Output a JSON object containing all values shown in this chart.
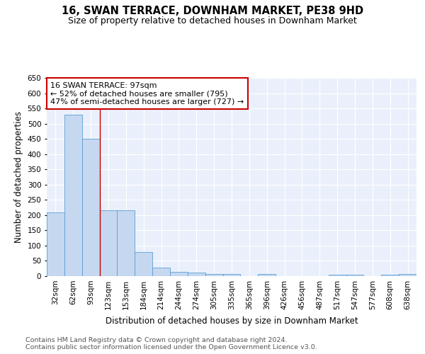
{
  "title": "16, SWAN TERRACE, DOWNHAM MARKET, PE38 9HD",
  "subtitle": "Size of property relative to detached houses in Downham Market",
  "xlabel": "Distribution of detached houses by size in Downham Market",
  "ylabel": "Number of detached properties",
  "footnote1": "Contains HM Land Registry data © Crown copyright and database right 2024.",
  "footnote2": "Contains public sector information licensed under the Open Government Licence v3.0.",
  "categories": [
    "32sqm",
    "62sqm",
    "93sqm",
    "123sqm",
    "153sqm",
    "184sqm",
    "214sqm",
    "244sqm",
    "274sqm",
    "305sqm",
    "335sqm",
    "365sqm",
    "396sqm",
    "426sqm",
    "456sqm",
    "487sqm",
    "517sqm",
    "547sqm",
    "577sqm",
    "608sqm",
    "638sqm"
  ],
  "values": [
    210,
    530,
    450,
    215,
    215,
    78,
    27,
    15,
    11,
    7,
    7,
    0,
    6,
    0,
    0,
    0,
    5,
    5,
    0,
    5,
    6
  ],
  "bar_color": "#c5d8f0",
  "bar_edge_color": "#5a9fd4",
  "vline_x_idx": 2,
  "vline_color": "#cc0000",
  "annotation_line1": "16 SWAN TERRACE: 97sqm",
  "annotation_line2": "← 52% of detached houses are smaller (795)",
  "annotation_line3": "47% of semi-detached houses are larger (727) →",
  "annotation_box_color": "#ffffff",
  "annotation_box_edge": "#cc0000",
  "ylim": [
    0,
    650
  ],
  "yticks": [
    0,
    50,
    100,
    150,
    200,
    250,
    300,
    350,
    400,
    450,
    500,
    550,
    600,
    650
  ],
  "bg_color": "#eaf0fb",
  "fig_bg_color": "#ffffff",
  "title_fontsize": 10.5,
  "subtitle_fontsize": 9,
  "annot_fontsize": 8,
  "tick_fontsize": 7.5,
  "xlabel_fontsize": 8.5,
  "ylabel_fontsize": 8.5,
  "footnote_fontsize": 6.8
}
